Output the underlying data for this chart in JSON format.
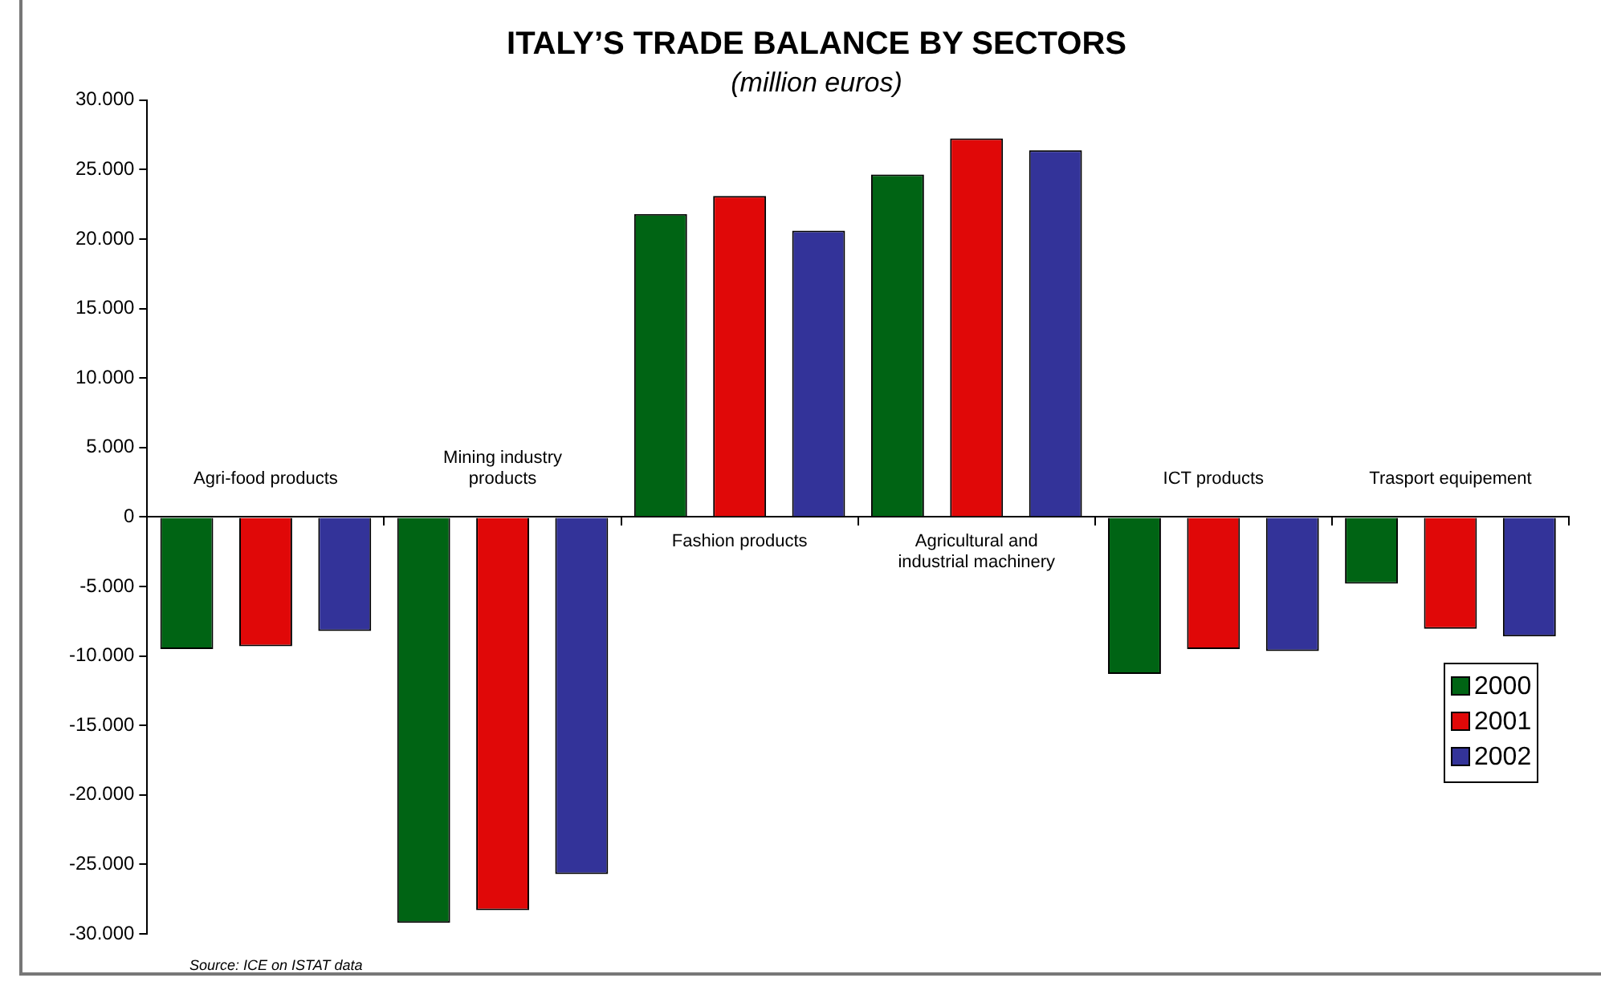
{
  "chart_data": {
    "type": "bar",
    "title": "ITALY’S TRADE BALANCE BY SECTORS",
    "subtitle": "(million euros)",
    "categories": [
      "Agri-food products",
      "Mining industry products",
      "Fashion products",
      "Agricultural and industrial machinery",
      "ICT products",
      "Trasport equipement"
    ],
    "series": [
      {
        "name": "2000",
        "color": "#006414",
        "values": [
          -9500,
          -29200,
          21800,
          24650,
          -11300,
          -4800
        ]
      },
      {
        "name": "2001",
        "color": "#e00808",
        "values": [
          -9300,
          -28300,
          23100,
          27250,
          -9500,
          -8050
        ]
      },
      {
        "name": "2002",
        "color": "#333399",
        "values": [
          -8200,
          -25700,
          20600,
          26400,
          -9650,
          -8600
        ]
      }
    ],
    "ylim": [
      -30000,
      30000
    ],
    "yticks": [
      {
        "value": -30000,
        "label": "-30.000"
      },
      {
        "value": -25000,
        "label": "-25.000"
      },
      {
        "value": -20000,
        "label": "-20.000"
      },
      {
        "value": -15000,
        "label": "-15.000"
      },
      {
        "value": -10000,
        "label": "-10.000"
      },
      {
        "value": -5000,
        "label": "-5.000"
      },
      0,
      {
        "value": 5000,
        "label": "5.000"
      },
      {
        "value": 10000,
        "label": "10.000"
      },
      {
        "value": 15000,
        "label": "15.000"
      },
      {
        "value": 20000,
        "label": "20.000"
      },
      {
        "value": 25000,
        "label": "25.000"
      },
      {
        "value": 30000,
        "label": "30.000"
      }
    ],
    "grid": false,
    "legend": "bottom right",
    "annotations": [
      "Source: ICE on ISTAT data"
    ]
  }
}
